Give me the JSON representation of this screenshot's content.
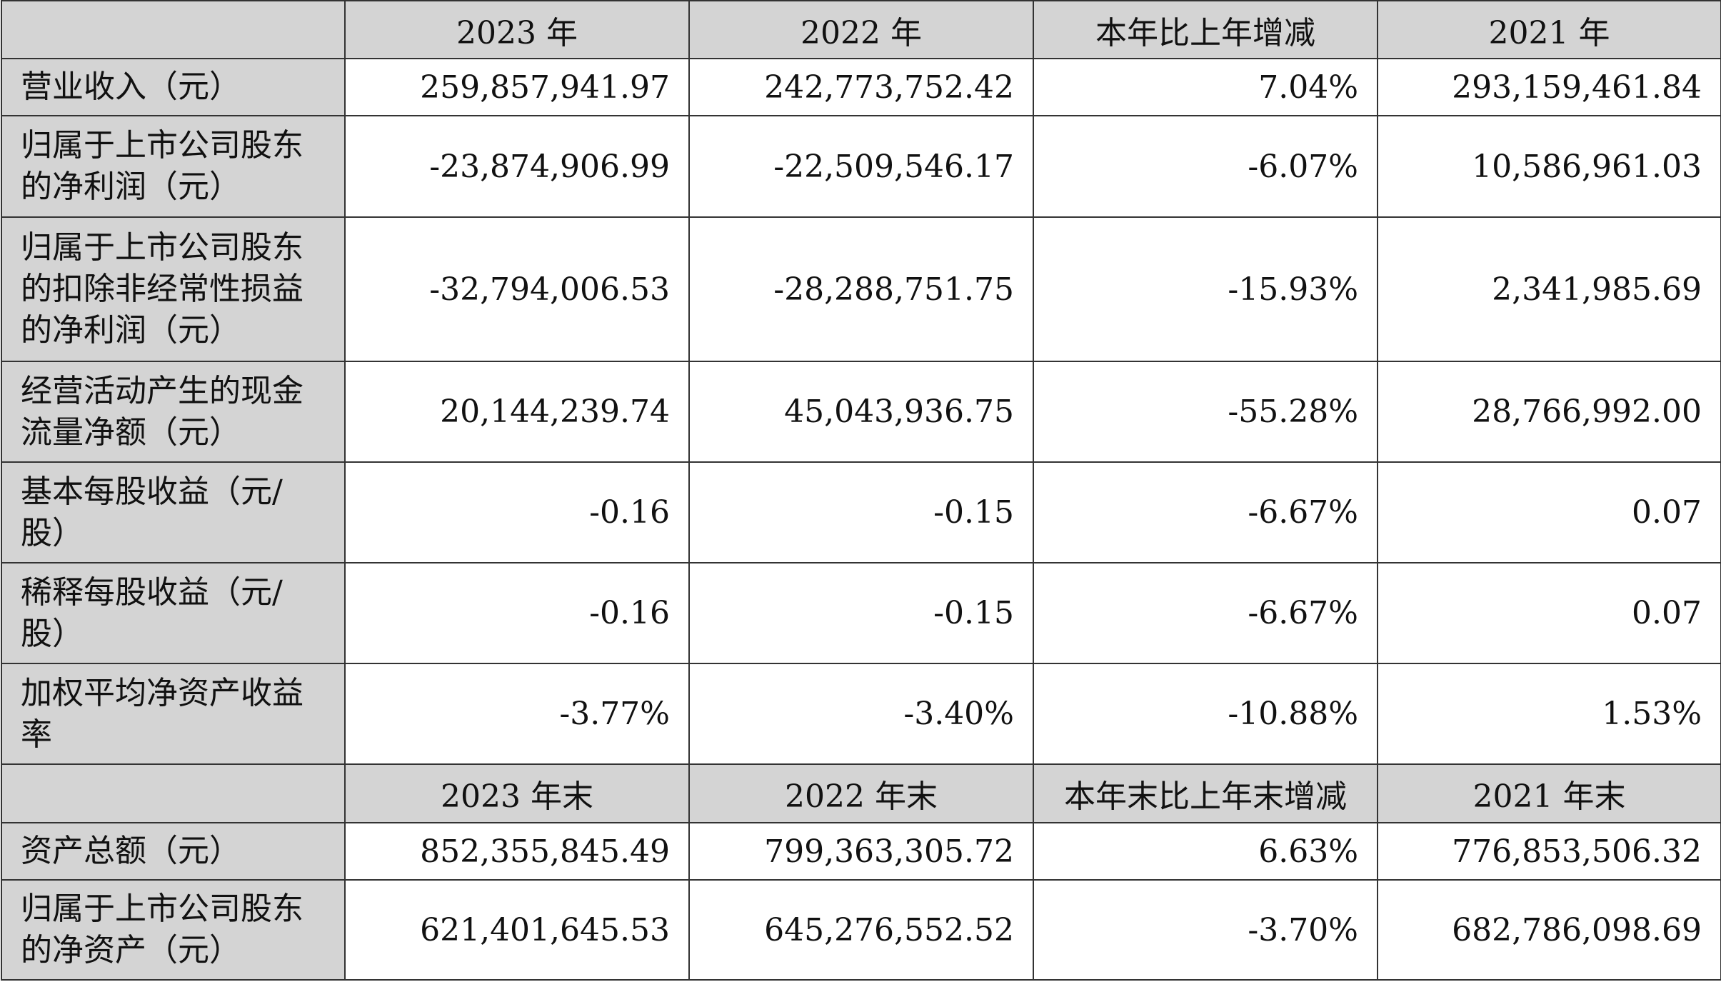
{
  "header1": [
    "",
    "2023 年",
    "2022 年",
    "本年比上年增减",
    "2021 年"
  ],
  "header2": [
    "",
    "2023 年末",
    "2022 年末",
    "本年末比上年末增减",
    "2021 年末"
  ],
  "rows": [
    {
      "label": [
        "营业收入（元）"
      ],
      "values": [
        "259,857,941.97",
        "242,773,752.42",
        "7.04%",
        "293,159,461.84"
      ]
    },
    {
      "label": [
        "归属于上市公司股东",
        "的净利润（元）"
      ],
      "values": [
        "-23,874,906.99",
        "-22,509,546.17",
        "-6.07%",
        "10,586,961.03"
      ]
    },
    {
      "label": [
        "归属于上市公司股东",
        "的扣除非经常性损益",
        "的净利润（元）"
      ],
      "values": [
        "-32,794,006.53",
        "-28,288,751.75",
        "-15.93%",
        "2,341,985.69"
      ]
    },
    {
      "label": [
        "经营活动产生的现金",
        "流量净额（元）"
      ],
      "values": [
        "20,144,239.74",
        "45,043,936.75",
        "-55.28%",
        "28,766,992.00"
      ]
    },
    {
      "label": [
        "基本每股收益（元/",
        "股）"
      ],
      "values": [
        "-0.16",
        "-0.15",
        "-6.67%",
        "0.07"
      ]
    },
    {
      "label": [
        "稀释每股收益（元/",
        "股）"
      ],
      "values": [
        "-0.16",
        "-0.15",
        "-6.67%",
        "0.07"
      ]
    },
    {
      "label": [
        "加权平均净资产收益",
        "率"
      ],
      "values": [
        "-3.77%",
        "-3.40%",
        "-10.88%",
        "1.53%"
      ]
    }
  ],
  "rows2": [
    {
      "label": [
        "资产总额（元）"
      ],
      "values": [
        "852,355,845.49",
        "799,363,305.72",
        "6.63%",
        "776,853,506.32"
      ]
    },
    {
      "label": [
        "归属于上市公司股东",
        "的净资产（元）"
      ],
      "values": [
        "621,401,645.53",
        "645,276,552.52",
        "-3.70%",
        "682,786,098.69"
      ]
    }
  ]
}
